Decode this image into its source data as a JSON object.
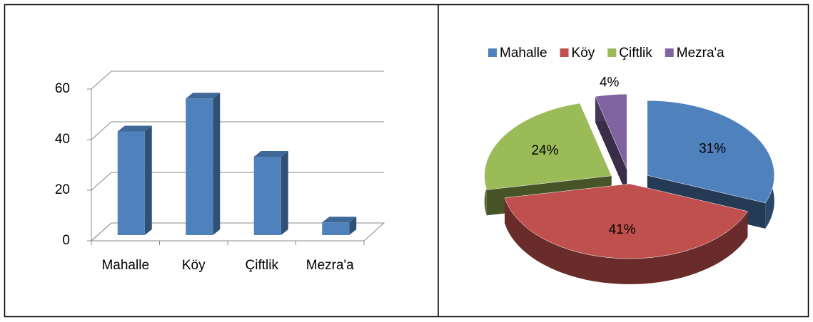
{
  "chart_data": [
    {
      "type": "bar",
      "categories": [
        "Mahalle",
        "Köy",
        "Çiftlik",
        "Mezra'a"
      ],
      "values": [
        41,
        54,
        31,
        5
      ],
      "color": "#4f81bd",
      "ylim": [
        0,
        60
      ],
      "yticks": [
        0,
        20,
        40,
        60
      ],
      "grid": true
    },
    {
      "type": "pie",
      "categories": [
        "Mahalle",
        "Köy",
        "Çiftlik",
        "Mezra'a"
      ],
      "values": [
        31,
        41,
        24,
        4
      ],
      "value_labels": [
        "31%",
        "41%",
        "24%",
        "4%"
      ],
      "colors": [
        "#4f81bd",
        "#c0504d",
        "#9bbb59",
        "#8064a2"
      ],
      "legend": "top"
    }
  ]
}
